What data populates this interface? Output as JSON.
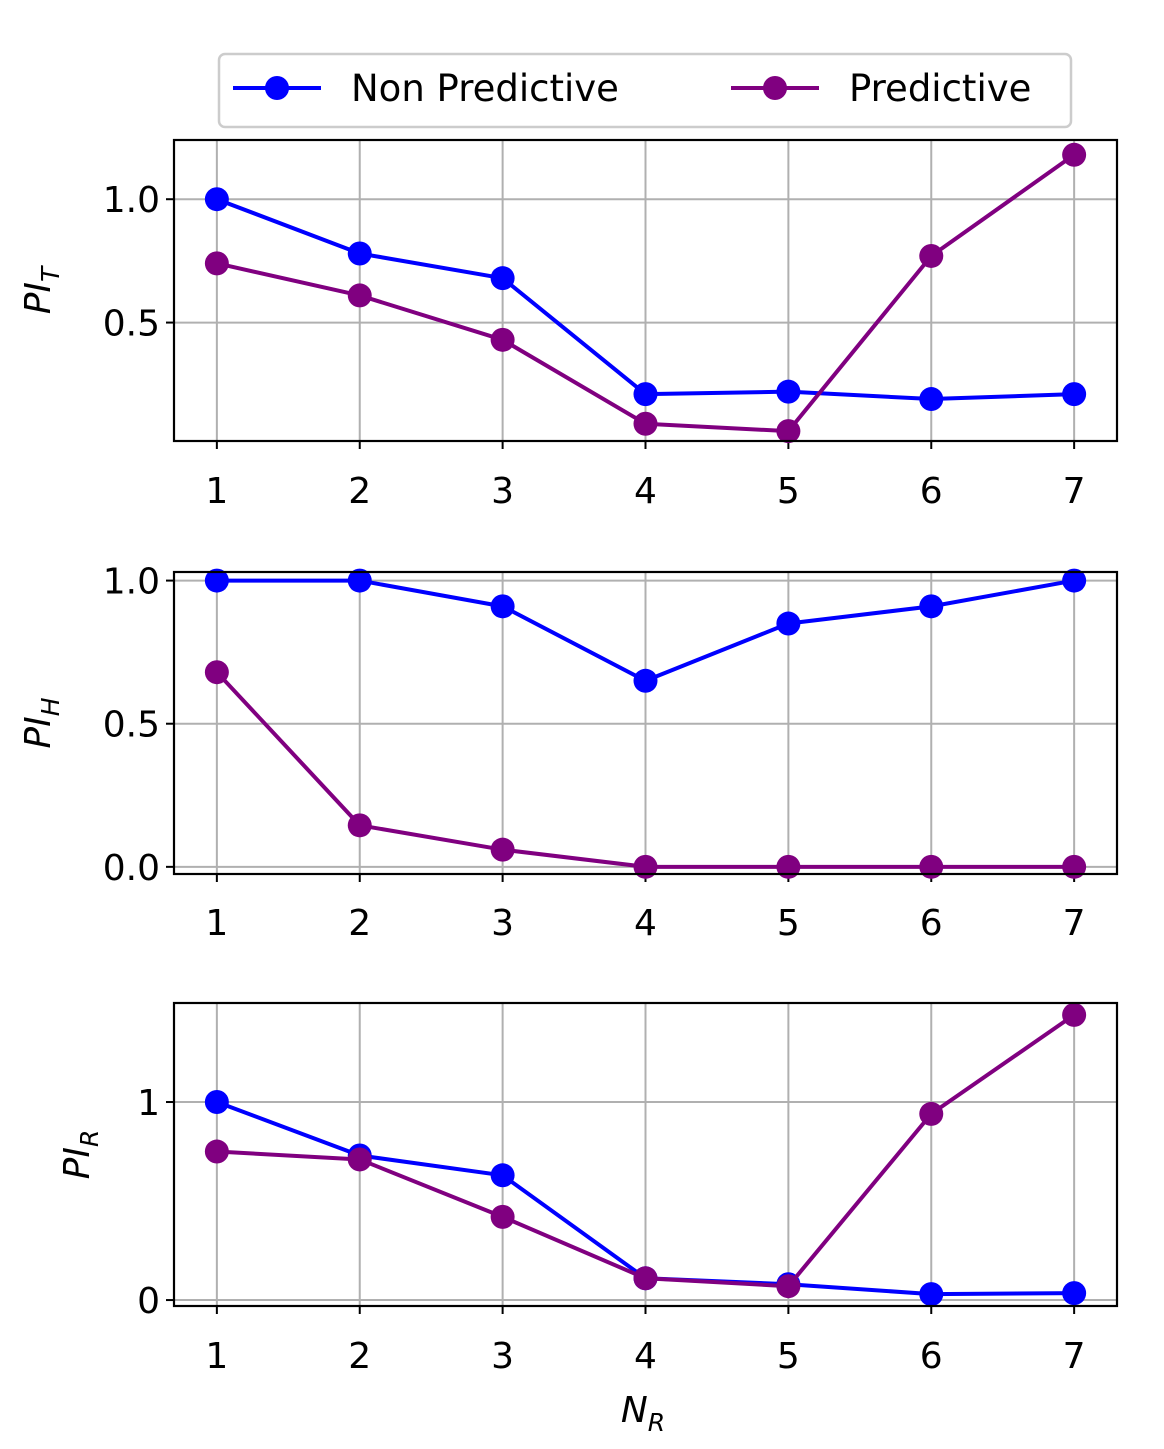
{
  "chart_data": {
    "type": "line",
    "legend": {
      "placement": "top-center",
      "entries": [
        {
          "label": "Non Predictive",
          "color": "#0000ff"
        },
        {
          "label": "Predictive",
          "color": "#800080"
        }
      ]
    },
    "xlabel": {
      "main": "N",
      "sub": "R"
    },
    "grid": true,
    "x": [
      1,
      2,
      3,
      4,
      5,
      6,
      7
    ],
    "subplots": [
      {
        "ylabel": {
          "main": "PI",
          "sub": "T"
        },
        "ylim": [
          0.02,
          1.24
        ],
        "yticks": [
          0.5,
          1.0
        ],
        "ytick_labels": [
          "0.5",
          "1.0"
        ],
        "series": [
          {
            "name": "Non Predictive",
            "color": "#0000ff",
            "values": [
              1.0,
              0.78,
              0.68,
              0.21,
              0.22,
              0.19,
              0.21
            ]
          },
          {
            "name": "Predictive",
            "color": "#800080",
            "values": [
              0.74,
              0.61,
              0.43,
              0.09,
              0.06,
              0.77,
              1.18
            ]
          }
        ]
      },
      {
        "ylabel": {
          "main": "PI",
          "sub": "H"
        },
        "ylim": [
          -0.025,
          1.03
        ],
        "yticks": [
          0.0,
          0.5,
          1.0
        ],
        "ytick_labels": [
          "0.0",
          "0.5",
          "1.0"
        ],
        "series": [
          {
            "name": "Non Predictive",
            "color": "#0000ff",
            "values": [
              1.0,
              1.0,
              0.91,
              0.65,
              0.85,
              0.91,
              1.0
            ]
          },
          {
            "name": "Predictive",
            "color": "#800080",
            "values": [
              0.68,
              0.145,
              0.06,
              0.0,
              0.0,
              0.0,
              0.0
            ]
          }
        ]
      },
      {
        "ylabel": {
          "main": "PI",
          "sub": "R"
        },
        "ylim": [
          -0.03,
          1.5
        ],
        "yticks": [
          0,
          1
        ],
        "ytick_labels": [
          "0",
          "1"
        ],
        "series": [
          {
            "name": "Non Predictive",
            "color": "#0000ff",
            "values": [
              1.0,
              0.73,
              0.63,
              0.11,
              0.08,
              0.03,
              0.035
            ]
          },
          {
            "name": "Predictive",
            "color": "#800080",
            "values": [
              0.75,
              0.71,
              0.42,
              0.11,
              0.07,
              0.94,
              1.44
            ]
          }
        ]
      }
    ]
  }
}
